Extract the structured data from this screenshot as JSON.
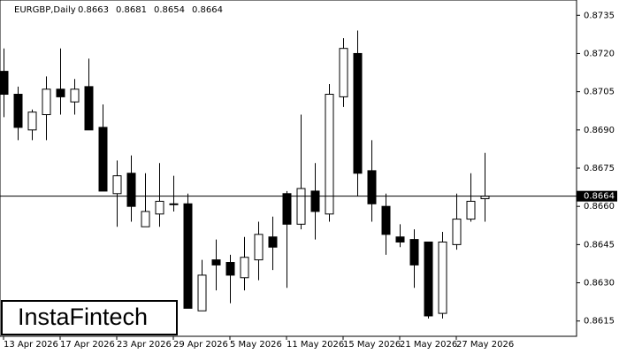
{
  "chart_data": {
    "type": "candlestick",
    "title": "EURGBP,Daily",
    "header_values": [
      0.8663,
      0.8681,
      0.8654,
      0.8664
    ],
    "watermark": "InstaFintech",
    "last_price": 0.8664,
    "categories": [
      "13 Apr 2026",
      null,
      null,
      null,
      "17 Apr 2026",
      null,
      null,
      null,
      "23 Apr 2026",
      null,
      null,
      null,
      "29 Apr 2026",
      null,
      null,
      null,
      "5 May 2026",
      null,
      null,
      null,
      "11 May 2026",
      null,
      null,
      null,
      "15 May 2026",
      null,
      null,
      null,
      "21 May 2026",
      null,
      null,
      null,
      "27 May 2026",
      null,
      null
    ],
    "open": [
      0.8713,
      0.8704,
      0.869,
      0.8696,
      0.8706,
      0.8701,
      0.8707,
      0.8691,
      0.8665,
      0.8673,
      0.8652,
      0.8657,
      0.8661,
      0.8661,
      0.8619,
      0.8639,
      0.8638,
      0.8632,
      0.8639,
      0.8648,
      0.8665,
      0.8653,
      0.8666,
      0.8657,
      0.8703,
      0.872,
      0.8674,
      0.866,
      0.8648,
      0.8647,
      0.8646,
      0.8618,
      0.8645,
      0.8655,
      0.8663
    ],
    "high": [
      0.8722,
      0.8707,
      0.8698,
      0.8711,
      0.8722,
      0.871,
      0.8718,
      0.87,
      0.8678,
      0.868,
      0.8673,
      0.8677,
      0.8672,
      0.8665,
      0.8639,
      0.8647,
      0.8641,
      0.8648,
      0.8654,
      0.8656,
      0.8666,
      0.8696,
      0.8677,
      0.8708,
      0.8726,
      0.8729,
      0.8686,
      0.8665,
      0.8653,
      0.8651,
      0.8646,
      0.865,
      0.8665,
      0.8673,
      0.8681
    ],
    "low": [
      0.8695,
      0.8686,
      0.8686,
      0.8686,
      0.8696,
      0.8696,
      0.869,
      0.8666,
      0.8652,
      0.8654,
      0.8652,
      0.8652,
      0.8658,
      0.862,
      0.8619,
      0.8627,
      0.8622,
      0.8627,
      0.8631,
      0.8635,
      0.8628,
      0.8651,
      0.8647,
      0.8654,
      0.8699,
      0.8664,
      0.8654,
      0.8641,
      0.8644,
      0.8628,
      0.8616,
      0.8616,
      0.8643,
      0.8654,
      0.8654
    ],
    "close": [
      0.8704,
      0.8691,
      0.8697,
      0.8706,
      0.8703,
      0.8706,
      0.869,
      0.8666,
      0.8672,
      0.866,
      0.8658,
      0.8662,
      0.8661,
      0.862,
      0.8633,
      0.8637,
      0.8633,
      0.864,
      0.8649,
      0.8644,
      0.8653,
      0.8667,
      0.8658,
      0.8704,
      0.8722,
      0.8673,
      0.8661,
      0.8649,
      0.8646,
      0.8637,
      0.8617,
      0.8646,
      0.8655,
      0.8662,
      0.8664
    ],
    "up_color": "#ffffff",
    "down_color": "#000000",
    "ylim": [
      0.8609,
      0.8741
    ],
    "yticks": [
      0.8615,
      {
        "value": 0.863,
        "label": "0.8630"
      },
      0.8645,
      {
        "value": 0.866,
        "label": "0.8660"
      },
      0.8675,
      {
        "value": 0.869,
        "label": "0.8690"
      },
      0.8705,
      {
        "value": 0.872,
        "label": "0.8720"
      },
      0.8735
    ]
  }
}
